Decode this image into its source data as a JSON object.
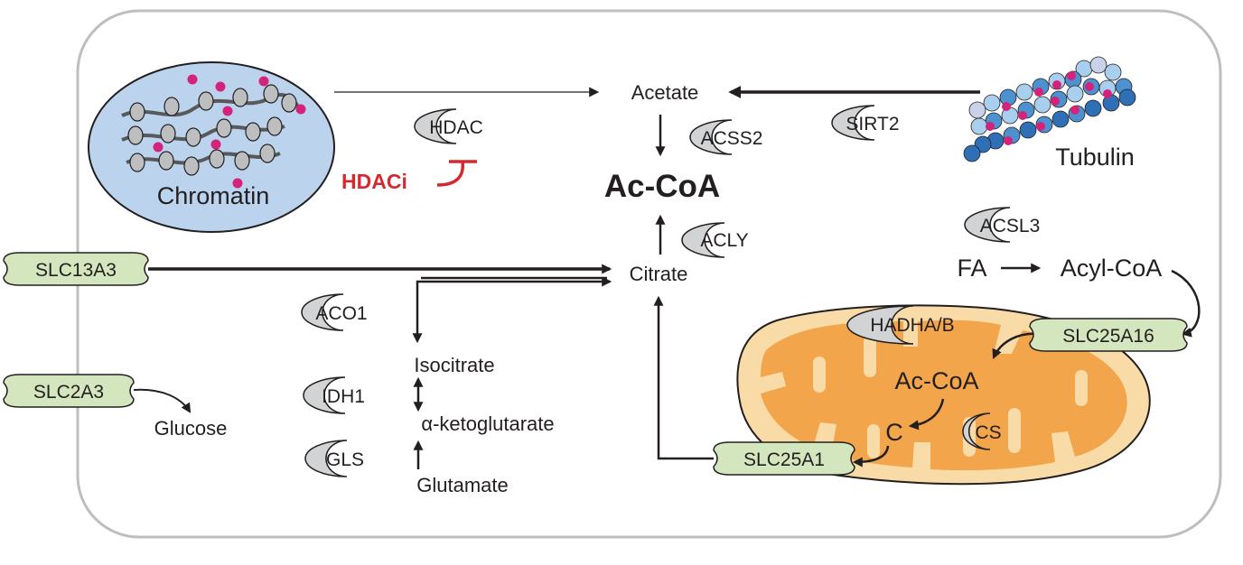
{
  "colors": {
    "enzyme_fill": "#d1d3d4",
    "transporter_fill": "#d4e6bd",
    "chromatin_fill": "#bcd3ee",
    "acetyl_mark": "#d4237a",
    "inhibitor": "#d7282f",
    "mito_outer": "#f9dba7",
    "mito_inner": "#f2a54a",
    "tubulin_dark": "#2f6fb5",
    "tubulin_light": "#a9cfee",
    "outline": "#231f20"
  },
  "labels": {
    "chromatin": "Chromatin",
    "tubulin": "Tubulin",
    "acetate": "Acetate",
    "accoa": "Ac-CoA",
    "citrate": "Citrate",
    "isocitrate": "Isocitrate",
    "akg": "α-ketoglutarate",
    "glutamate": "Glutamate",
    "glucose": "Glucose",
    "fa": "FA",
    "acylcoa": "Acyl-CoA",
    "mito_accoa": "Ac-CoA",
    "mito_c": "C",
    "hdaci": "HDACi"
  },
  "enzymes": {
    "hdac": "HDAC",
    "acss2": "ACSS2",
    "sirt2": "SIRT2",
    "acly": "ACLY",
    "acsl3": "ACSL3",
    "aco1": "ACO1",
    "idh1": "IDH1",
    "gls": "GLS",
    "hadha": "HADHA/B",
    "cs": "CS"
  },
  "transporters": {
    "slc13a3": "SLC13A3",
    "slc2a3": "SLC2A3",
    "slc25a16": "SLC25A16",
    "slc25a1": "SLC25A1"
  }
}
